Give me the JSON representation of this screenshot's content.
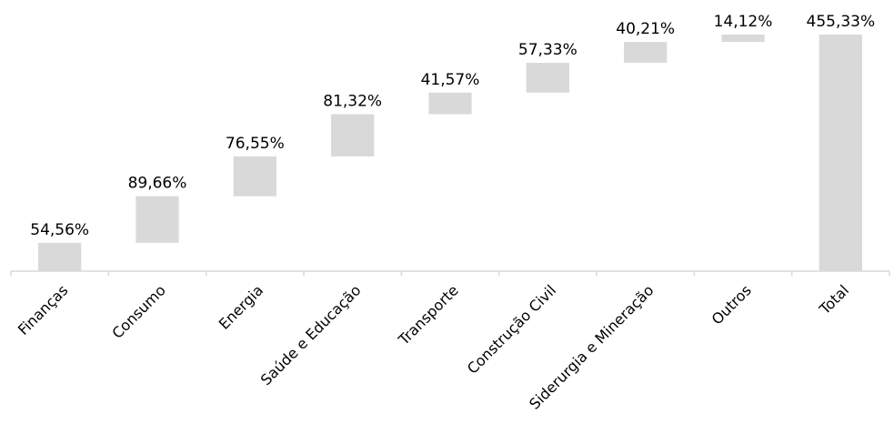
{
  "chart_data": {
    "type": "waterfall",
    "title": "",
    "xlabel": "",
    "ylabel": "",
    "categories": [
      "Finanças",
      "Consumo",
      "Energia",
      "Saúde e Educação",
      "Transporte",
      "Construção Civil",
      "Siderurgia e Mineração",
      "Outros",
      "Total"
    ],
    "values": [
      54.56,
      89.66,
      76.55,
      81.32,
      41.57,
      57.33,
      40.21,
      14.12,
      455.33
    ],
    "data_labels": [
      "54,56%",
      "89,66%",
      "76,55%",
      "81,32%",
      "41,57%",
      "57,33%",
      "40,21%",
      "14,12%",
      "455,33%"
    ],
    "is_total": [
      false,
      false,
      false,
      false,
      false,
      false,
      false,
      false,
      true
    ],
    "ylim": [
      0,
      470
    ],
    "grid": false,
    "legend": "none",
    "colors": {
      "bar": "#d9d9d9",
      "axis": "#d9d9d9",
      "text": "#000000"
    }
  }
}
